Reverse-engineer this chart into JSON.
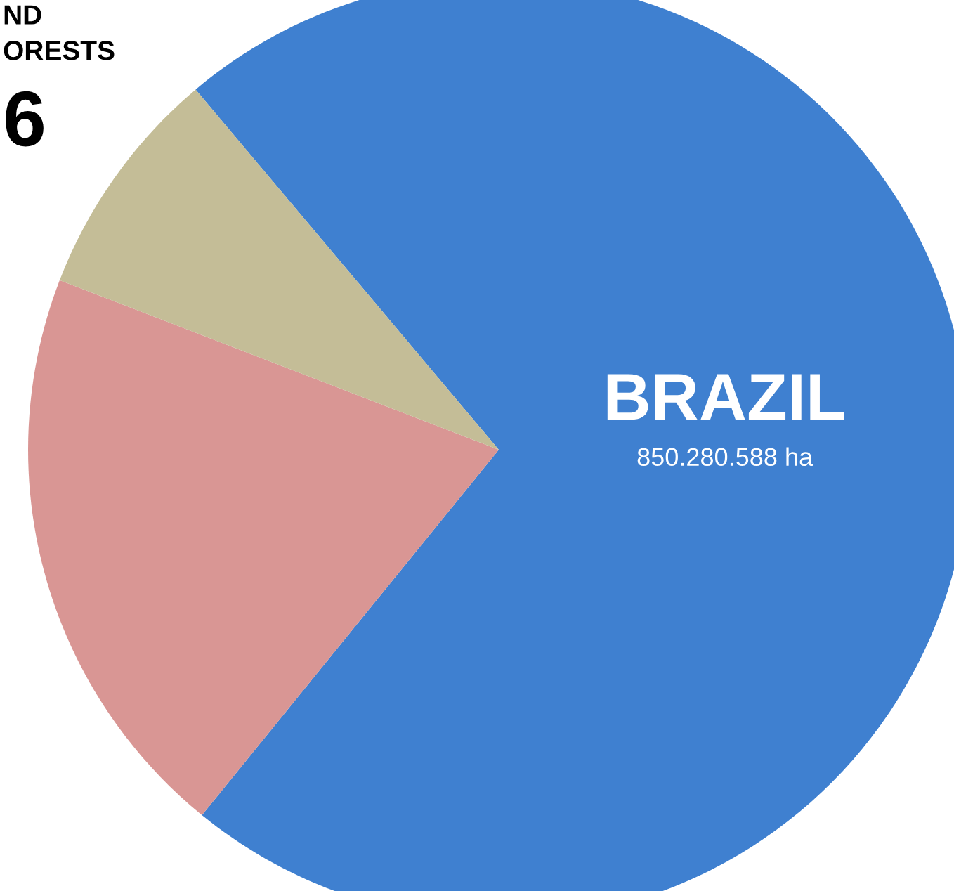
{
  "chart_data": {
    "type": "pie",
    "categories": [
      "BRAZIL",
      null,
      null
    ],
    "values": [
      72,
      20,
      8
    ],
    "colors": [
      "#3f80d0",
      "#d99694",
      "#c4bd97"
    ],
    "annotations": [
      "ND",
      "ORESTS",
      "6",
      "850.280.588 ha"
    ]
  }
}
